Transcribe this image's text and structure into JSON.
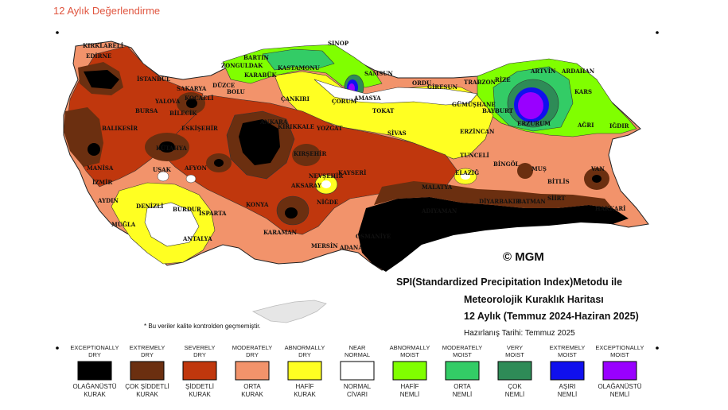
{
  "page_title": "12 Aylık Değerlendirme",
  "map_title_line1": "SPI(Standardized Precipitation Index)Metodu ile",
  "map_title_line2": "Meteorolojik Kuraklık Haritası",
  "map_title_line3": "12 Aylık (Temmuz 2024-Haziran 2025)",
  "prepared_date": "Hazırlanış Tarihi: Temmuz 2025",
  "logo_text": "© MGM",
  "quality_note": "* Bu veriler kalite kontrolden geçmemiştir.",
  "cities": [
    "SINOP",
    "BARTIN",
    "KIRKLARELİ",
    "ZONGULDAK",
    "KASTAMONU",
    "EDİRNE",
    "KARABÜK",
    "SAMSUN",
    "ARTVİN",
    "ARDAHAN",
    "ORDU",
    "GİRESUN",
    "TRABZON",
    "RİZE",
    "İSTANBUL",
    "SAKARYA",
    "DÜZCE",
    "BOLU",
    "AMASYA",
    "ÇANKIRI",
    "ÇORUM",
    "KARS",
    "YALOVA",
    "KOCAELİ",
    "GÜMÜŞHANE",
    "BAYBURT",
    "BURSA",
    "BİLECİK",
    "TOKAT",
    "ERZURUM",
    "AĞRI",
    "IĞDIR",
    "BALIKESİR",
    "ESKİŞEHİR",
    "ANKARA",
    "KIRIKKALE",
    "YOZGAT",
    "SİVAS",
    "ERZİNCAN",
    "KÜTAHYA",
    "KIRŞEHİR",
    "TUNCELİ",
    "MANİSA",
    "UŞAK",
    "AFYON",
    "NEVŞEHİR",
    "KAYSERİ",
    "BİNGÖL",
    "MUŞ",
    "VAN",
    "ELAZIĞ",
    "İZMİR",
    "AKSARAY",
    "BİTLİS",
    "MALATYA",
    "AYDIN",
    "DENİZLİ",
    "BURDUR",
    "ISPARTA",
    "KONYA",
    "NİĞDE",
    "DİYARBAKIR",
    "BATMAN",
    "SİİRT",
    "HAKKARİ",
    "ADIYAMAN",
    "MUĞLA",
    "KARAMAN",
    "ANTALYA",
    "MERSİN",
    "ADANA",
    "OSMANİYE"
  ],
  "legend": [
    {
      "en": [
        "EXCEPTIONALLY",
        "DRY"
      ],
      "tr": [
        "OLAĞANÜSTÜ",
        "KURAK"
      ],
      "color": "#000000"
    },
    {
      "en": [
        "EXTREMELY",
        "DRY"
      ],
      "tr": [
        "ÇOK ŞİDDETLİ",
        "KURAK"
      ],
      "color": "#6b2f10"
    },
    {
      "en": [
        "SEVERELY",
        "DRY"
      ],
      "tr": [
        "ŞİDDETLİ",
        "KURAK"
      ],
      "color": "#c0370d"
    },
    {
      "en": [
        "MODERATELY",
        "DRY"
      ],
      "tr": [
        "ORTA",
        "KURAK"
      ],
      "color": "#f2936b"
    },
    {
      "en": [
        "ABNORMALLY",
        "DRY"
      ],
      "tr": [
        "HAFİF",
        "KURAK"
      ],
      "color": "#ffff22"
    },
    {
      "en": [
        "NEAR",
        "NORMAL"
      ],
      "tr": [
        "NORMAL",
        "CİVARI"
      ],
      "color": "#ffffff"
    },
    {
      "en": [
        "ABNORMALLY",
        "MOIST"
      ],
      "tr": [
        "HAFİF",
        "NEMLİ"
      ],
      "color": "#80ff00"
    },
    {
      "en": [
        "MODERATELY",
        "MOIST"
      ],
      "tr": [
        "ORTA",
        "NEMLİ"
      ],
      "color": "#33cc66"
    },
    {
      "en": [
        "VERY",
        "MOIST"
      ],
      "tr": [
        "ÇOK",
        "NEMLİ"
      ],
      "color": "#2e8b57"
    },
    {
      "en": [
        "EXTREMELY",
        "MOIST"
      ],
      "tr": [
        "AŞIRI",
        "NEMLİ"
      ],
      "color": "#1010ee"
    },
    {
      "en": [
        "EXCEPTIONALLY",
        "MOIST"
      ],
      "tr": [
        "OLAĞANÜSTÜ",
        "NEMLİ"
      ],
      "color": "#9900ff"
    }
  ]
}
